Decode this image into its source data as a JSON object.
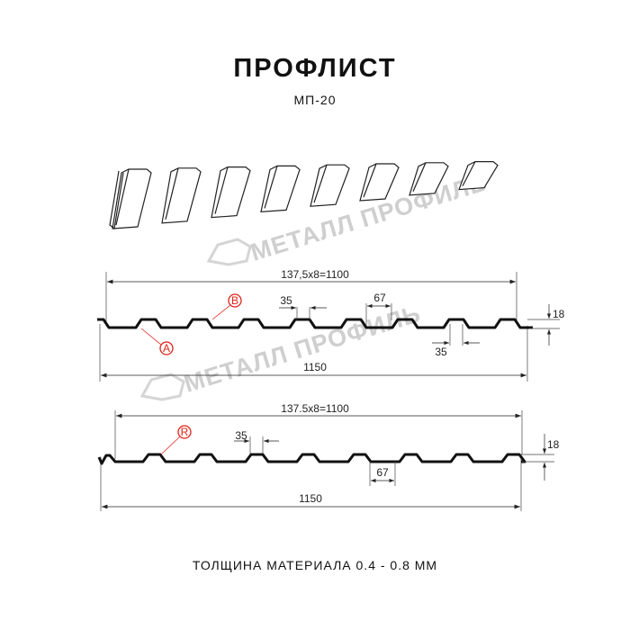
{
  "header": {
    "title": "ПРОФЛИСТ",
    "subtitle": "МП-20"
  },
  "watermark": {
    "text": "МЕТАЛЛ ПРОФИЛЬ",
    "color": "#cfcfcf"
  },
  "profile_a": {
    "pitch_label": "137,5x8=1100",
    "width_label": "1150",
    "top_width_label": "35",
    "bottom_width_label_right": "35",
    "valley_width_label": "67",
    "height_label": "18",
    "markers": [
      "A",
      "B"
    ]
  },
  "profile_r": {
    "pitch_label": "137.5x8=1100",
    "width_label": "1150",
    "top_width_label": "35",
    "valley_width_label": "67",
    "height_label": "18",
    "markers": [
      "R"
    ]
  },
  "footer": {
    "text": "ТОЛЩИНА МАТЕРИАЛА 0.4 - 0.8 ММ"
  },
  "colors": {
    "profile": "#111111",
    "marker": "#e0231b"
  }
}
